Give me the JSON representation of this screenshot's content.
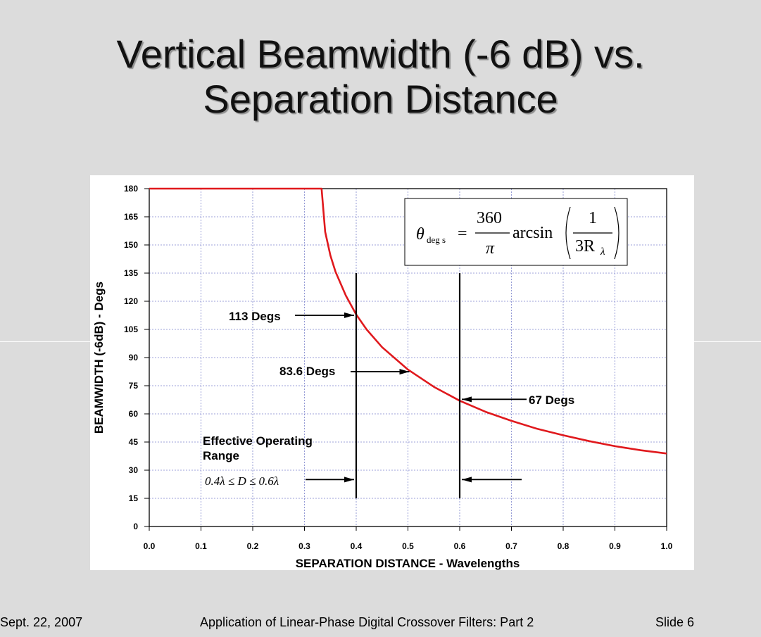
{
  "slide": {
    "title_line1": "Vertical Beamwidth (-6 dB) vs.",
    "title_line2": "Separation Distance",
    "footer_date": "Sept. 22, 2007",
    "footer_title": "Application of Linear-Phase Digital Crossover Filters: Part 2",
    "footer_slide": "Slide 6"
  },
  "chart_data": {
    "type": "line",
    "title": "",
    "xlabel": "SEPARATION DISTANCE - Wavelengths",
    "ylabel": "BEAMWIDTH (-6dB) - Degs",
    "xlim": [
      0.0,
      1.0
    ],
    "ylim": [
      0,
      180
    ],
    "x_ticks": [
      "0.0",
      "0.1",
      "0.2",
      "0.3",
      "0.4",
      "0.5",
      "0.6",
      "0.7",
      "0.8",
      "0.9",
      "1.0"
    ],
    "y_ticks": [
      "0",
      "15",
      "30",
      "45",
      "60",
      "75",
      "90",
      "105",
      "120",
      "135",
      "150",
      "165",
      "180"
    ],
    "grid": true,
    "series": [
      {
        "color": "#e0191d",
        "x": [
          0.0,
          0.1,
          0.2,
          0.3,
          0.333,
          0.34,
          0.35,
          0.36,
          0.38,
          0.4,
          0.42,
          0.45,
          0.5,
          0.55,
          0.6,
          0.65,
          0.7,
          0.75,
          0.8,
          0.85,
          0.9,
          0.95,
          1.0
        ],
        "y": [
          180,
          180,
          180,
          180,
          180,
          157.0,
          144.4,
          135.7,
          123.0,
          112.9,
          105.0,
          95.5,
          83.6,
          74.4,
          67.0,
          61.1,
          56.3,
          52.0,
          48.6,
          45.5,
          42.8,
          40.6,
          38.9
        ]
      }
    ],
    "equation": {
      "lhs": "θ",
      "lhs_sub": "deg s",
      "equals": "=",
      "num": "360",
      "den": "π",
      "func": "arcsin",
      "inner_num": "1",
      "inner_den": "3R",
      "inner_den_sub": "λ"
    },
    "vertical_markers": [
      {
        "x": 0.4,
        "y_from": 15,
        "y_to": 135
      },
      {
        "x": 0.6,
        "y_from": 15,
        "y_to": 135
      }
    ],
    "annotations": [
      {
        "text": "113 Degs",
        "x": 0.4,
        "y": 112.9
      },
      {
        "text": "83.6 Degs",
        "x": 0.5,
        "y": 83.6
      },
      {
        "text": "67 Degs",
        "x": 0.6,
        "y": 67.0
      }
    ],
    "range_label_line1": "Effective Operating",
    "range_label_line2": "Range",
    "range_formula": "0.4λ ≤ D ≤ 0.6λ"
  }
}
